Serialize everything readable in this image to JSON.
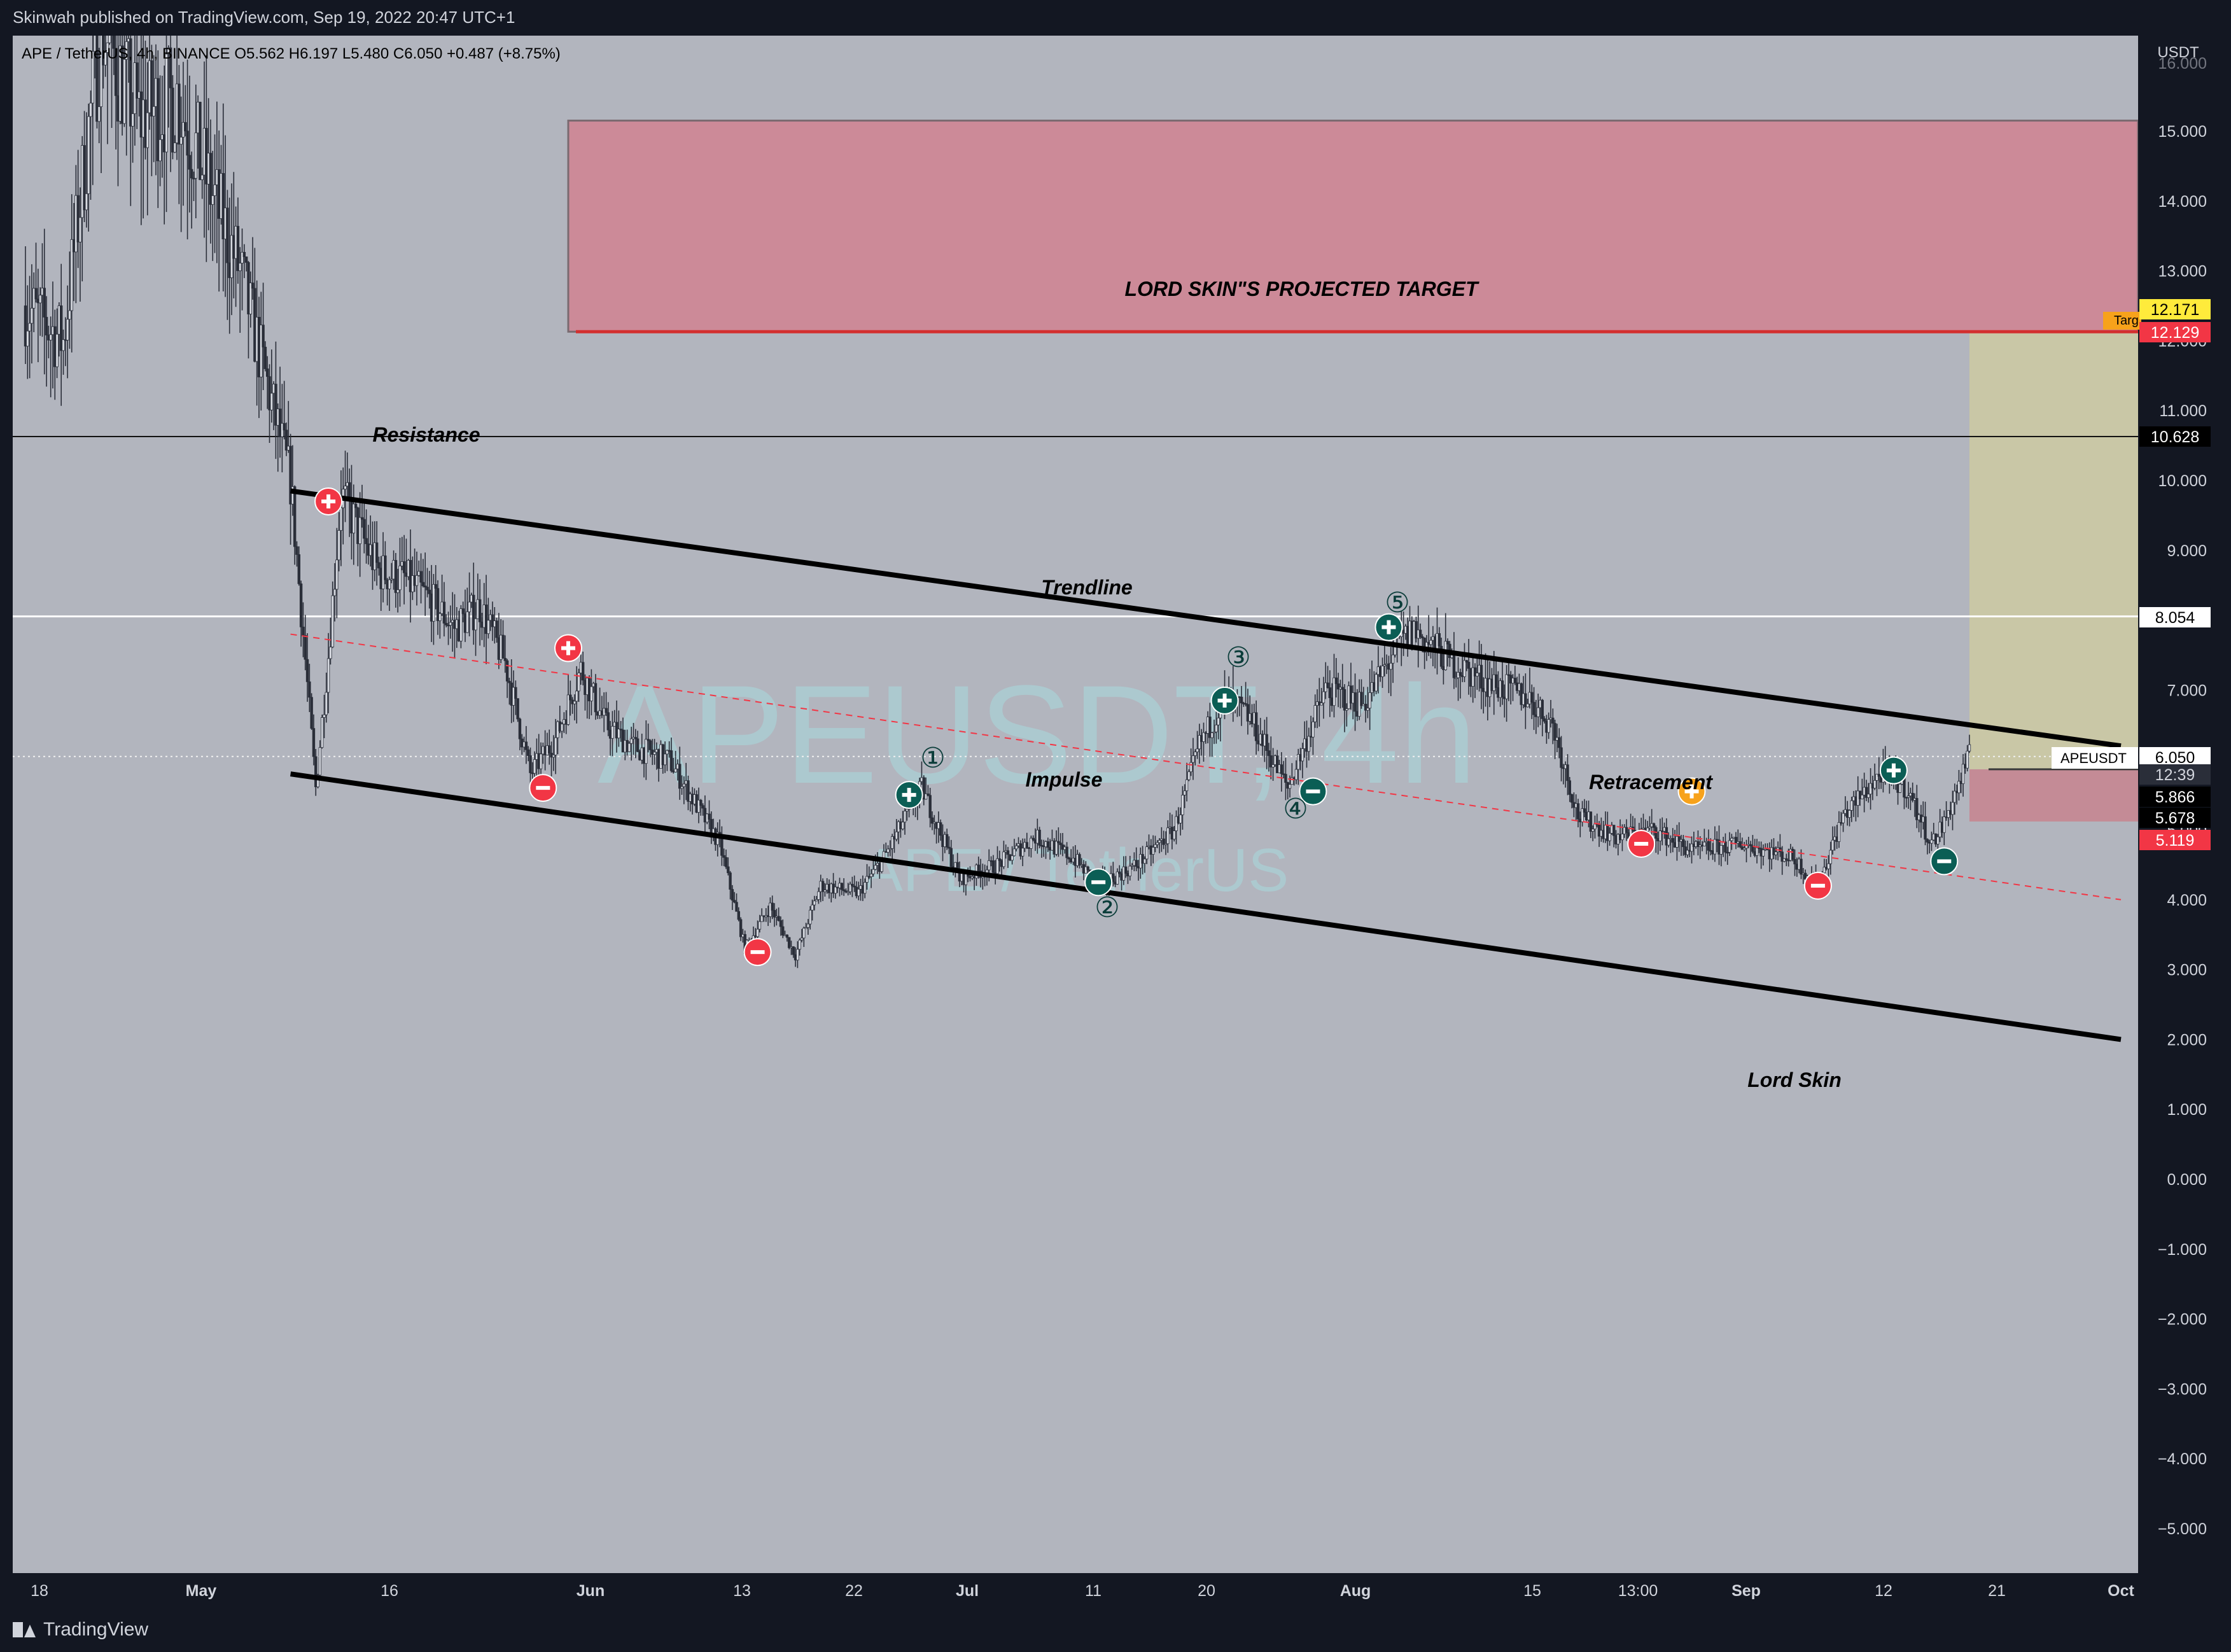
{
  "header": {
    "published_by": "Skinwah published on TradingView.com, Sep 19, 2022 20:47 UTC+1"
  },
  "legend": {
    "symbol": "APE / TetherUS, 4h, BINANCE",
    "open": "O5.562",
    "high": "H6.197",
    "low": "L5.480",
    "close": "C6.050",
    "change": "+0.487 (+8.75%)"
  },
  "watermark": {
    "ticker": "APEUSDT, 4h",
    "description": "APE / TetherUS"
  },
  "axis": {
    "currency": "USDT"
  },
  "footer": {
    "brand": "TradingView"
  },
  "colors": {
    "chart_bg": "#b2b5be",
    "ui_bg": "#131722",
    "candle": "#2a2e39",
    "target_zone": "#cc8a98",
    "target_line": "#d32f2f",
    "position_profit": "#c9c7a6",
    "position_loss": "#c48b96",
    "marker_red": "#f23645",
    "marker_green": "#0b5e55",
    "marker_orange": "#f7a21b",
    "price_label_yellow": "#ffeb3b",
    "price_label_red": "#f23645"
  },
  "chart_data": {
    "type": "candlestick",
    "symbol": "APEUSDT",
    "timeframe": "4h",
    "exchange": "BINANCE",
    "ylim": [
      -5.4,
      16.0
    ],
    "y_ticks": [
      "15.000",
      "14.000",
      "13.000",
      "12.000",
      "11.000",
      "10.000",
      "9.000",
      "8.000",
      "7.000",
      "6.000",
      "5.000",
      "4.000",
      "3.000",
      "2.000",
      "1.000",
      "0.000",
      "−1.000",
      "−2.000",
      "−3.000",
      "−4.000",
      "−5.000"
    ],
    "x_ticks": [
      "18",
      "May",
      "16",
      "Jun",
      "13",
      "22",
      "Jul",
      "11",
      "20",
      "Aug",
      "15",
      "13:00",
      "Sep",
      "12",
      "21",
      "Oct"
    ],
    "price_path": [
      [
        "2022-04-18",
        12.5
      ],
      [
        "2022-04-21",
        12.0
      ],
      [
        "2022-04-24",
        16.5
      ],
      [
        "2022-04-27",
        15.2
      ],
      [
        "2022-04-30",
        15.5
      ],
      [
        "2022-05-03",
        14.0
      ],
      [
        "2022-05-05",
        13.0
      ],
      [
        "2022-05-07",
        11.5
      ],
      [
        "2022-05-09",
        10.0
      ],
      [
        "2022-05-10",
        7.8
      ],
      [
        "2022-05-11",
        5.6
      ],
      [
        "2022-05-12",
        7.5
      ],
      [
        "2022-05-13",
        9.8
      ],
      [
        "2022-05-16",
        8.7
      ],
      [
        "2022-05-18",
        8.6
      ],
      [
        "2022-05-20",
        8.3
      ],
      [
        "2022-05-22",
        7.9
      ],
      [
        "2022-05-24",
        8.2
      ],
      [
        "2022-05-26",
        7.4
      ],
      [
        "2022-05-28",
        5.8
      ],
      [
        "2022-05-30",
        6.3
      ],
      [
        "2022-06-01",
        7.3
      ],
      [
        "2022-06-03",
        6.5
      ],
      [
        "2022-06-05",
        6.2
      ],
      [
        "2022-06-08",
        6.0
      ],
      [
        "2022-06-10",
        5.4
      ],
      [
        "2022-06-12",
        4.8
      ],
      [
        "2022-06-14",
        3.3
      ],
      [
        "2022-06-16",
        3.9
      ],
      [
        "2022-06-18",
        3.2
      ],
      [
        "2022-06-20",
        4.2
      ],
      [
        "2022-06-23",
        4.1
      ],
      [
        "2022-06-25",
        4.6
      ],
      [
        "2022-06-28",
        5.6
      ],
      [
        "2022-07-01",
        4.3
      ],
      [
        "2022-07-04",
        4.5
      ],
      [
        "2022-07-07",
        4.9
      ],
      [
        "2022-07-10",
        4.6
      ],
      [
        "2022-07-12",
        4.2
      ],
      [
        "2022-07-15",
        4.5
      ],
      [
        "2022-07-18",
        5.0
      ],
      [
        "2022-07-20",
        6.2
      ],
      [
        "2022-07-22",
        6.9
      ],
      [
        "2022-07-24",
        6.6
      ],
      [
        "2022-07-27",
        5.6
      ],
      [
        "2022-07-30",
        7.0
      ],
      [
        "2022-08-02",
        6.8
      ],
      [
        "2022-08-05",
        7.7
      ],
      [
        "2022-08-06",
        7.85
      ],
      [
        "2022-08-09",
        7.4
      ],
      [
        "2022-08-12",
        7.1
      ],
      [
        "2022-08-15",
        6.9
      ],
      [
        "2022-08-17",
        6.5
      ],
      [
        "2022-08-19",
        5.2
      ],
      [
        "2022-08-22",
        4.9
      ],
      [
        "2022-08-25",
        5.0
      ],
      [
        "2022-08-28",
        4.7
      ],
      [
        "2022-09-01",
        4.8
      ],
      [
        "2022-09-05",
        4.6
      ],
      [
        "2022-09-07",
        4.2
      ],
      [
        "2022-09-09",
        5.2
      ],
      [
        "2022-09-12",
        5.8
      ],
      [
        "2022-09-14",
        5.6
      ],
      [
        "2022-09-16",
        4.8
      ],
      [
        "2022-09-17",
        5.1
      ],
      [
        "2022-09-19",
        6.05
      ]
    ],
    "annotations": [
      "LORD SKIN\"S PROJECTED TARGET",
      "Resistance",
      "Trendline",
      "Impulse",
      "Retracement",
      "Lord Skin"
    ],
    "wave_labels": [
      "①",
      "②",
      "③",
      "④",
      "⑤"
    ],
    "price_levels": [
      {
        "label": "12.171",
        "value": 12.171,
        "style": "yellow"
      },
      {
        "label": "12.129",
        "value": 12.129,
        "style": "red"
      },
      {
        "label": "10.628",
        "value": 10.628,
        "style": "black"
      },
      {
        "label": "8.054",
        "value": 8.054,
        "style": "white"
      },
      {
        "label": "6.050",
        "value": 6.05,
        "style": "white"
      },
      {
        "label": "12:39",
        "value": 5.78,
        "style": "grey"
      },
      {
        "label": "5.866",
        "value": 5.866,
        "style": "black"
      },
      {
        "label": "5.678",
        "value": 5.678,
        "style": "black"
      },
      {
        "label": "5.119",
        "value": 5.119,
        "style": "red"
      }
    ],
    "side_tags": {
      "target_tag": "Targ",
      "symbol_tag": "APEUSDT"
    },
    "target_zone": {
      "from": "2022-05-31",
      "to": "2022-10-01",
      "low": 12.129,
      "high": 15.15
    },
    "horizontal_lines": [
      10.628,
      8.054,
      12.129
    ],
    "channel": {
      "upper": [
        [
          "2022-05-09",
          9.85
        ],
        [
          "2022-10-01",
          6.2
        ]
      ],
      "middle": [
        [
          "2022-05-09",
          7.8
        ],
        [
          "2022-10-01",
          4.0
        ]
      ],
      "lower": [
        [
          "2022-05-09",
          5.8
        ],
        [
          "2022-10-01",
          2.0
        ]
      ]
    },
    "position": {
      "from": "2022-09-19",
      "to": "2022-10-01",
      "entry": 5.866,
      "target": 12.129,
      "stop": 5.119
    },
    "markers": [
      {
        "date": "2022-05-12",
        "value": 9.7,
        "kind": "plus",
        "color": "red"
      },
      {
        "date": "2022-05-31",
        "value": 7.6,
        "kind": "plus",
        "color": "red"
      },
      {
        "date": "2022-05-29",
        "value": 5.6,
        "kind": "minus",
        "color": "red"
      },
      {
        "date": "2022-06-15",
        "value": 3.25,
        "kind": "minus",
        "color": "red"
      },
      {
        "date": "2022-06-27",
        "value": 5.5,
        "kind": "plus",
        "color": "green"
      },
      {
        "date": "2022-07-12",
        "value": 4.25,
        "kind": "minus",
        "color": "green"
      },
      {
        "date": "2022-07-22",
        "value": 6.85,
        "kind": "plus",
        "color": "green"
      },
      {
        "date": "2022-07-29",
        "value": 5.55,
        "kind": "minus",
        "color": "green"
      },
      {
        "date": "2022-08-04",
        "value": 7.9,
        "kind": "plus",
        "color": "green"
      },
      {
        "date": "2022-08-24",
        "value": 4.8,
        "kind": "minus",
        "color": "red"
      },
      {
        "date": "2022-08-28",
        "value": 5.55,
        "kind": "plus",
        "color": "orange"
      },
      {
        "date": "2022-09-07",
        "value": 4.2,
        "kind": "minus",
        "color": "red"
      },
      {
        "date": "2022-09-13",
        "value": 5.85,
        "kind": "plus",
        "color": "green"
      },
      {
        "date": "2022-09-17",
        "value": 4.55,
        "kind": "minus",
        "color": "green"
      }
    ]
  }
}
